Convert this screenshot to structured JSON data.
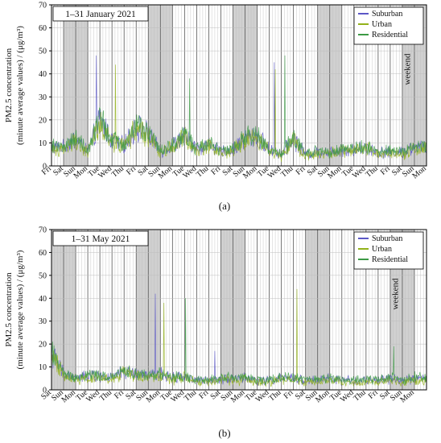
{
  "colors": {
    "suburban": "#5b57c6",
    "urban": "#93b21a",
    "residential": "#3c9a45",
    "weekend_shade": "#d0d0d0",
    "grid": "#bdbdbd",
    "axis": "#000000"
  },
  "chart_data": [
    {
      "type": "line",
      "date_label": "1–31 January 2021",
      "caption": "(a)",
      "ylabel_line1": "PM2.5 concentration",
      "ylabel_line2": "(minute average values) / (μg/m³)",
      "ylim": [
        0,
        70
      ],
      "yticks": [
        0,
        10,
        20,
        30,
        40,
        50,
        60,
        70
      ],
      "grid": true,
      "legend_position": "top-right",
      "annotation": "weekend",
      "xtick_labels": [
        "Fri",
        "Sat",
        "Sun",
        "Mon",
        "Tue",
        "Wed",
        "Thu",
        "Fri",
        "Sat",
        "Sun",
        "Mon",
        "Tue",
        "Wed",
        "Thu",
        "Fri",
        "Sat",
        "Sun",
        "Mon",
        "Tue",
        "Wed",
        "Thu",
        "Fri",
        "Sat",
        "Sun",
        "Mon",
        "Tue",
        "Wed",
        "Thu",
        "Fri",
        "Sat",
        "Sun",
        "Mon"
      ],
      "weekends": [
        [
          1,
          3
        ],
        [
          8,
          10
        ],
        [
          15,
          17
        ],
        [
          22,
          24
        ],
        [
          29,
          31
        ]
      ],
      "series": [
        {
          "name": "Suburban",
          "color_key": "suburban"
        },
        {
          "name": "Urban",
          "color_key": "urban"
        },
        {
          "name": "Residential",
          "color_key": "residential"
        }
      ],
      "daily_levels": [
        8,
        8,
        12,
        6,
        20,
        11,
        9,
        17,
        14,
        6,
        9,
        13,
        7,
        10,
        6,
        7,
        12,
        13,
        7,
        5,
        12,
        5,
        6,
        6,
        7,
        7,
        8,
        6,
        6,
        6,
        8
      ],
      "noted_peaks": [
        [
          3.7,
          48
        ],
        [
          5.3,
          44
        ],
        [
          11.4,
          38
        ],
        [
          18.4,
          45
        ],
        [
          18.5,
          42
        ],
        [
          19.3,
          48
        ]
      ]
    },
    {
      "type": "line",
      "date_label": "1–31 May 2021",
      "caption": "(b)",
      "ylabel_line1": "PM2.5 concentration",
      "ylabel_line2": "(minute average values) / (μg/m³)",
      "ylim": [
        0,
        70
      ],
      "yticks": [
        0,
        10,
        20,
        30,
        40,
        50,
        60,
        70
      ],
      "grid": true,
      "legend_position": "top-right",
      "annotation": "weekend",
      "xtick_labels": [
        "Sat",
        "Sun",
        "Mon",
        "Tue",
        "Wed",
        "Thu",
        "Fri",
        "Sat",
        "Sun",
        "Mon",
        "Tue",
        "Wed",
        "Thu",
        "Fri",
        "Sat",
        "Sun",
        "Mon",
        "Tue",
        "Wed",
        "Thu",
        "Fri",
        "Sat",
        "Sun",
        "Mon",
        "Tue",
        "Wed",
        "Thu",
        "Fri",
        "Sat",
        "Sun",
        "Mon"
      ],
      "weekends": [
        [
          0,
          2
        ],
        [
          7,
          9
        ],
        [
          14,
          16
        ],
        [
          21,
          23
        ],
        [
          28,
          30
        ]
      ],
      "series": [
        {
          "name": "Suburban",
          "color_key": "suburban"
        },
        {
          "name": "Urban",
          "color_key": "urban"
        },
        {
          "name": "Residential",
          "color_key": "residential"
        }
      ],
      "daily_levels": [
        16,
        7,
        5,
        6,
        6,
        5,
        8,
        7,
        6,
        7,
        5,
        6,
        4,
        4,
        5,
        5,
        5,
        4,
        4,
        5,
        5,
        4,
        4,
        5,
        4,
        4,
        4,
        4,
        5,
        4,
        5
      ],
      "noted_peaks": [
        [
          8.6,
          42
        ],
        [
          9.3,
          38
        ],
        [
          11.1,
          40
        ],
        [
          13.5,
          17
        ],
        [
          20.3,
          44
        ],
        [
          28.3,
          19
        ]
      ]
    }
  ]
}
